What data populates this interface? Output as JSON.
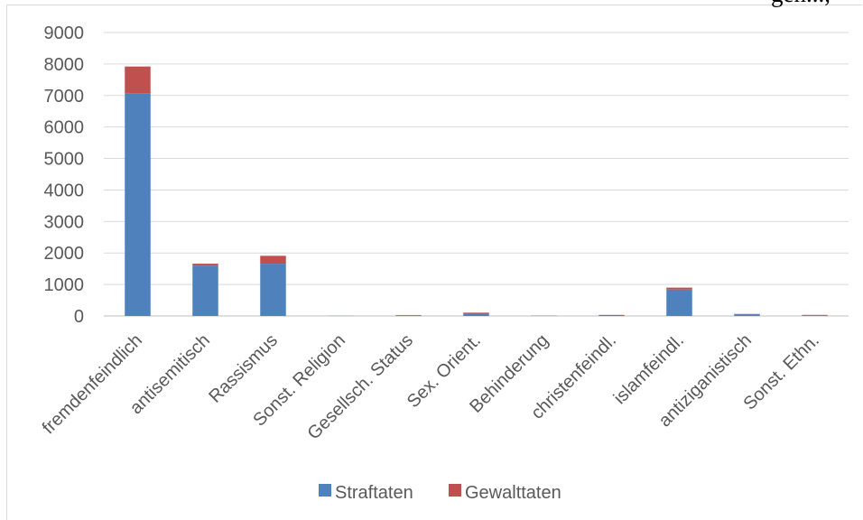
{
  "page_header_fragment": "gen...,",
  "chart_data": {
    "type": "bar",
    "stacked": true,
    "categories": [
      "fremdenfeindlich",
      "antisemitisch",
      "Rassismus",
      "Sonst. Religion",
      "Gesellsch. Status",
      "Sex. Orient.",
      "Behinderung",
      "christenfeindl.",
      "islamfeindl.",
      "antiziganistisch",
      "Sonst. Ethn."
    ],
    "series": [
      {
        "name": "Straftaten",
        "color": "#4f81bd",
        "values": [
          7070,
          1600,
          1660,
          5,
          20,
          85,
          10,
          30,
          840,
          55,
          25
        ]
      },
      {
        "name": "Gewalttaten",
        "color": "#c0504d",
        "values": [
          850,
          60,
          250,
          1,
          10,
          20,
          3,
          5,
          60,
          10,
          10
        ]
      }
    ],
    "ylim": [
      0,
      9000
    ],
    "yticks": [
      0,
      1000,
      2000,
      3000,
      4000,
      5000,
      6000,
      7000,
      8000,
      9000
    ],
    "grid": true,
    "legend": "bottom"
  }
}
